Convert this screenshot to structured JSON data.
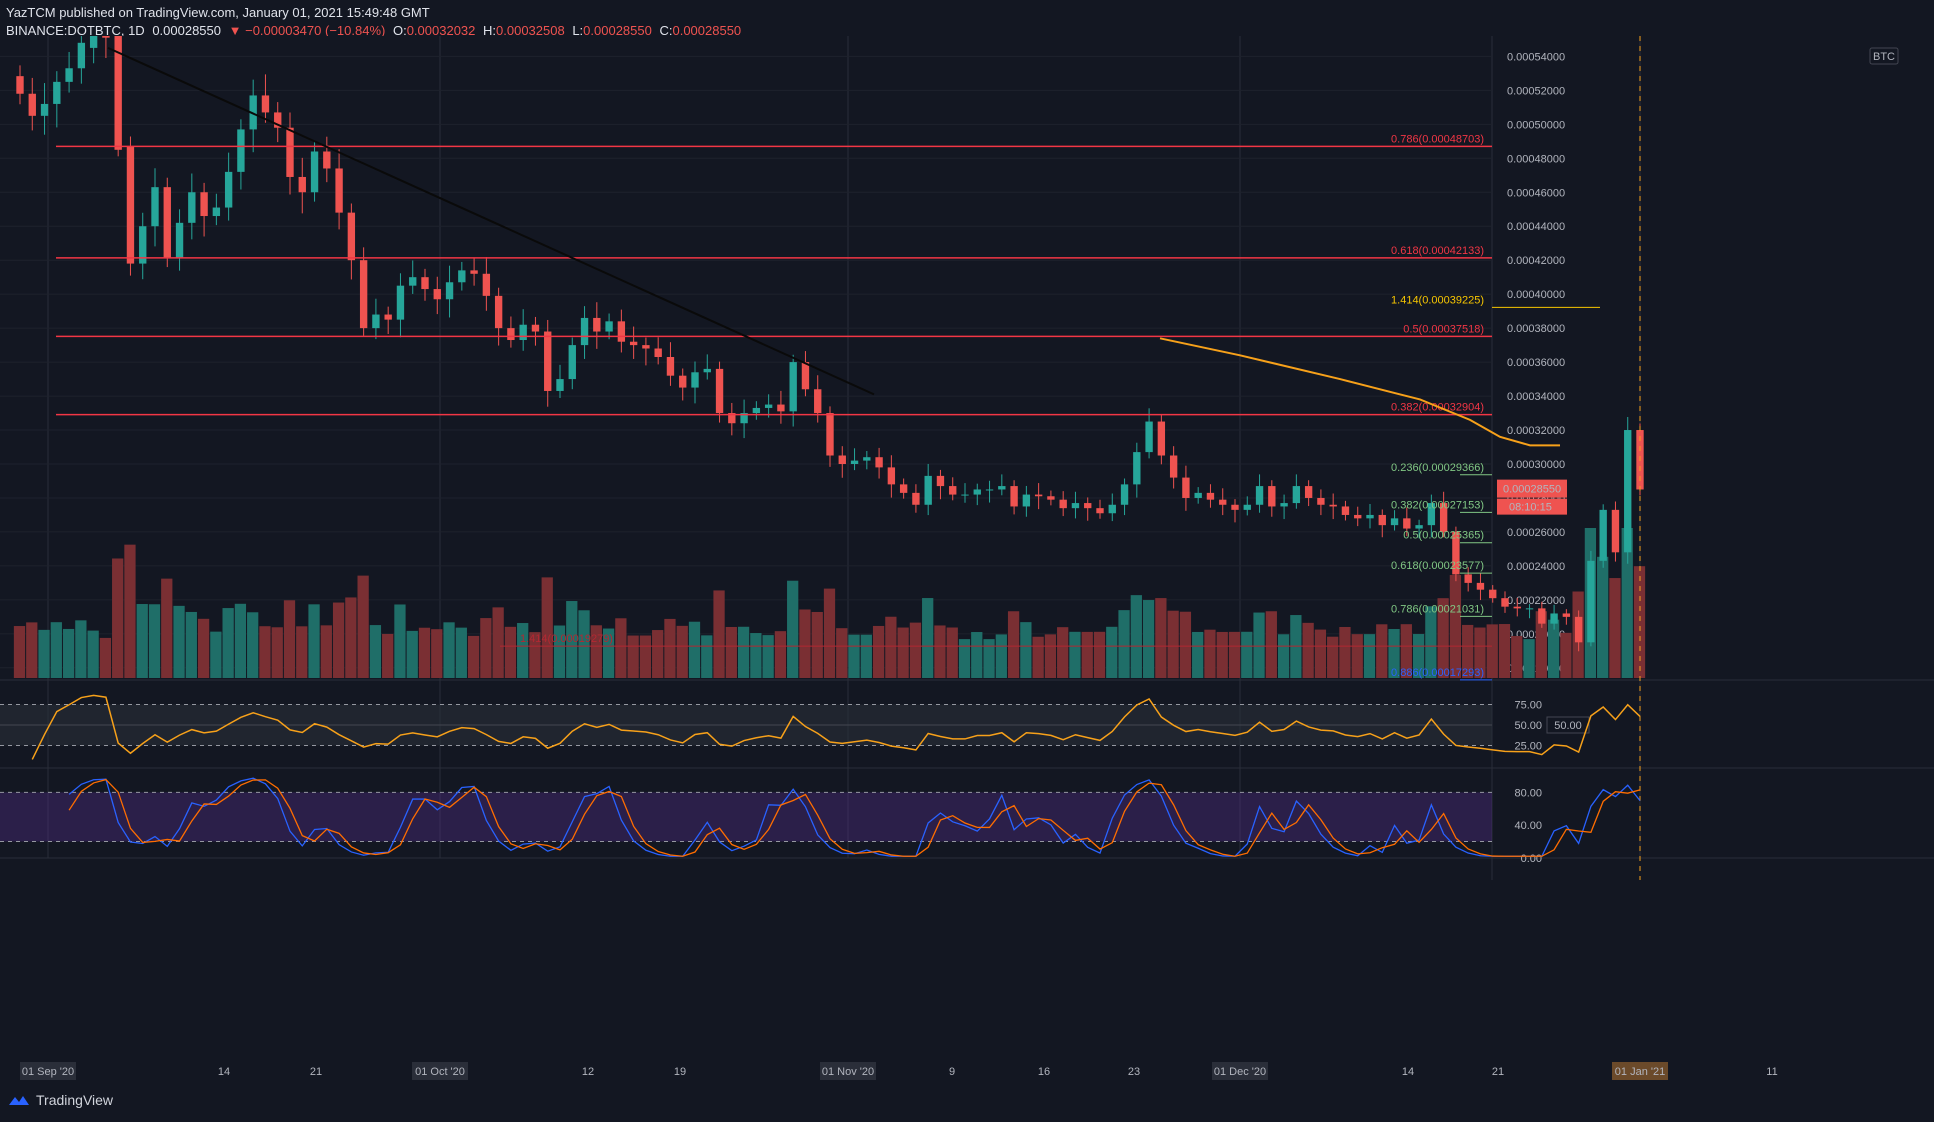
{
  "header": {
    "publisher": "YazTCM published on TradingView.com, January 01, 2021 15:49:48 GMT",
    "symbol": "BINANCE:DOTBTC, 1D",
    "last": "0.00028550",
    "change": "▼ −0.00003470 (−10.84%)",
    "o_label": "O:",
    "o": "0.00032032",
    "h_label": "H:",
    "h": "0.00032508",
    "l_label": "L:",
    "l": "0.00028550",
    "c_label": "C:",
    "c": "0.00028550"
  },
  "colors": {
    "bg": "#131722",
    "up": "#26a69a",
    "down": "#ef5350",
    "up_vol": "#1f6e68",
    "down_vol": "#7a2f33",
    "fib_red": "#f23645",
    "fib_green": "#81c784",
    "fib_blue": "#2962ff",
    "trend_orange": "#f7a11a",
    "rsi_line": "#f7a11a",
    "stoch_k": "#2962ff",
    "stoch_d": "#ff6d00",
    "price_tag": "#ef5350"
  },
  "price_axis": {
    "currency": "BTC",
    "ticks": [
      "0.00054000",
      "0.00052000",
      "0.00050000",
      "0.00048000",
      "0.00046000",
      "0.00044000",
      "0.00042000",
      "0.00040000",
      "0.00038000",
      "0.00036000",
      "0.00034000",
      "0.00032000",
      "0.00030000",
      "0.00028000",
      "0.00026000",
      "0.00024000",
      "0.00022000",
      "0.00020000",
      "0.00018000"
    ],
    "current_price": "0.00028550",
    "countdown": "08:10:15"
  },
  "time_axis": {
    "labels": [
      "01 Sep '20",
      "14",
      "21",
      "01 Oct '20",
      "12",
      "19",
      "01 Nov '20",
      "9",
      "16",
      "23",
      "01 Dec '20",
      "14",
      "21",
      "01 Jan '21",
      "11"
    ]
  },
  "fib_levels": [
    {
      "label": "0.786(0.00048703)",
      "price": 0.00048703,
      "color": "red"
    },
    {
      "label": "0.618(0.00042133)",
      "price": 0.00042133,
      "color": "red"
    },
    {
      "label": "1.414(0.00039225)",
      "price": 0.00039225,
      "color": "yellow"
    },
    {
      "label": "0.5(0.00037518)",
      "price": 0.00037518,
      "color": "red"
    },
    {
      "label": "0.382(0.00032904)",
      "price": 0.00032904,
      "color": "red"
    },
    {
      "label": "0.236(0.00029366)",
      "price": 0.00029366,
      "color": "green"
    },
    {
      "label": "0.382(0.00027153)",
      "price": 0.00027153,
      "color": "green"
    },
    {
      "label": "0.5(0.00025365)",
      "price": 0.00025365,
      "color": "green"
    },
    {
      "label": "0.618(0.00023577)",
      "price": 0.00023577,
      "color": "green"
    },
    {
      "label": "0.786(0.00021031)",
      "price": 0.00021031,
      "color": "green"
    },
    {
      "label": "1.414(0.00019279)",
      "price": 0.00019279,
      "color": "darkred"
    },
    {
      "label": "0.886(0.00017293)",
      "price": 0.00017293,
      "color": "blue"
    }
  ],
  "rsi": {
    "ticks": [
      "75.00",
      "50.00",
      "25.00"
    ],
    "current": "50.00"
  },
  "stoch": {
    "ticks": [
      "80.00",
      "40.00",
      "0.00"
    ]
  },
  "branding": {
    "name": "TradingView"
  },
  "chart_data": {
    "type": "candlestick",
    "title": "BINANCE:DOTBTC, 1D",
    "ylabel": "BTC",
    "ylim": [
      0.000174,
      0.000552
    ],
    "x_start": "2020-08-28",
    "x_end": "2021-01-01",
    "closes": [
      0.000518,
      0.000505,
      0.000512,
      0.000525,
      0.000533,
      0.000548,
      0.000555,
      0.000554,
      0.000487,
      0.000418,
      0.00044,
      0.000463,
      0.000421,
      0.000442,
      0.00046,
      0.000446,
      0.000451,
      0.000472,
      0.000497,
      0.000517,
      0.000507,
      0.000498,
      0.000469,
      0.00046,
      0.000484,
      0.000474,
      0.000448,
      0.00042,
      0.00038,
      0.000388,
      0.000385,
      0.000405,
      0.00041,
      0.000403,
      0.000397,
      0.000407,
      0.000414,
      0.000412,
      0.000399,
      0.00038,
      0.000373,
      0.000382,
      0.000378,
      0.000343,
      0.00035,
      0.00037,
      0.000386,
      0.000378,
      0.000384,
      0.000372,
      0.00037,
      0.000368,
      0.000363,
      0.000352,
      0.000345,
      0.000354,
      0.000356,
      0.00033,
      0.000324,
      0.00033,
      0.000333,
      0.000335,
      0.000331,
      0.00036,
      0.000344,
      0.00033,
      0.000305,
      0.0003,
      0.000302,
      0.000304,
      0.000298,
      0.000288,
      0.000283,
      0.000276,
      0.000293,
      0.000287,
      0.000282,
      0.000282,
      0.000285,
      0.000285,
      0.000287,
      0.000275,
      0.000282,
      0.000281,
      0.000279,
      0.000274,
      0.000277,
      0.000274,
      0.000271,
      0.000276,
      0.000288,
      0.000307,
      0.000325,
      0.000305,
      0.000292,
      0.00028,
      0.000283,
      0.000279,
      0.000276,
      0.000273,
      0.000276,
      0.000287,
      0.000275,
      0.000277,
      0.000287,
      0.00028,
      0.000276,
      0.000275,
      0.00027,
      0.000268,
      0.00027,
      0.000264,
      0.000268,
      0.000262,
      0.000264,
      0.000277,
      0.00026,
      0.000235,
      0.00023,
      0.000226,
      0.000221,
      0.000216,
      0.000215,
      0.000215,
      0.000206,
      0.000212,
      0.00021,
      0.000195,
      0.000243,
      0.000273,
      0.000248,
      0.00032,
      0.000285
    ],
    "volume_scale": "relative",
    "indicators": [
      "Volume",
      "RSI(14)",
      "Stoch RSI"
    ]
  }
}
